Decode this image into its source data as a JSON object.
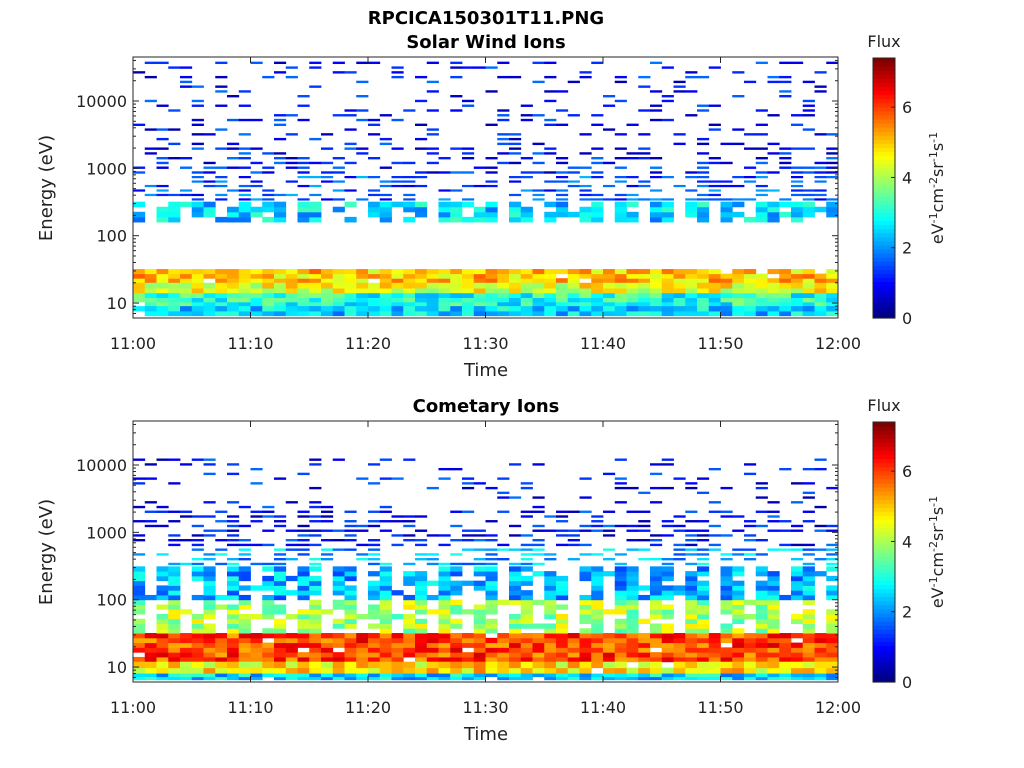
{
  "figure": {
    "title": "RPCICA150301T11.PNG"
  },
  "colorbar": {
    "title": "Flux",
    "label_prefix": "eV",
    "label_sup1": "-1",
    "label_unit2": "cm",
    "label_sup2": "-2",
    "label_unit3": "sr",
    "label_sup3": "-1",
    "label_unit4": "s",
    "label_sup4": "-1",
    "ticks": [
      "0",
      "2",
      "4",
      "6"
    ],
    "range": [
      0,
      7.4
    ],
    "colormap": "jet"
  },
  "chart_data": [
    {
      "type": "heatmap",
      "title": "Solar Wind Ions",
      "xlabel": "Time",
      "ylabel": "Energy (eV)",
      "x_range": [
        "11:00",
        "12:00"
      ],
      "x_ticks": [
        "11:00",
        "11:10",
        "11:20",
        "11:30",
        "11:40",
        "11:50",
        "12:00"
      ],
      "y_scale": "log",
      "y_range": [
        6,
        45000
      ],
      "y_ticks": [
        "10",
        "100",
        "1000",
        "10000"
      ],
      "series": [
        {
          "name": "",
          "energy_bands": [
            {
              "energy_range": [
                20,
                32
              ],
              "flux": 5.0
            },
            {
              "energy_range": [
                14,
                20
              ],
              "flux": 4.5
            },
            {
              "energy_range": [
                9,
                14
              ],
              "flux": 3.0
            },
            {
              "energy_range": [
                6.5,
                9
              ],
              "flux": 2.5
            },
            {
              "energy_range": [
                160,
                320
              ],
              "flux": 2.5
            },
            {
              "energy_range": [
                320,
                800
              ],
              "flux": 1.5
            },
            {
              "energy_range": [
                800,
                40000
              ],
              "flux": 1.0
            }
          ]
        }
      ]
    },
    {
      "type": "heatmap",
      "title": "Cometary Ions",
      "xlabel": "Time",
      "ylabel": "Energy (eV)",
      "x_range": [
        "11:00",
        "12:00"
      ],
      "x_ticks": [
        "11:00",
        "11:10",
        "11:20",
        "11:30",
        "11:40",
        "11:50",
        "12:00"
      ],
      "y_scale": "log",
      "y_range": [
        6,
        45000
      ],
      "y_ticks": [
        "10",
        "100",
        "1000",
        "10000"
      ],
      "series": [
        {
          "name": "",
          "energy_bands": [
            {
              "energy_range": [
                12,
                32
              ],
              "flux": 6.0
            },
            {
              "energy_range": [
                8,
                12
              ],
              "flux": 4.8
            },
            {
              "energy_range": [
                6.5,
                8
              ],
              "flux": 2.5
            },
            {
              "energy_range": [
                32,
                100
              ],
              "flux": 4.0
            },
            {
              "energy_range": [
                100,
                600
              ],
              "flux": 2.2
            },
            {
              "energy_range": [
                600,
                13000
              ],
              "flux": 1.0
            }
          ]
        }
      ]
    }
  ]
}
